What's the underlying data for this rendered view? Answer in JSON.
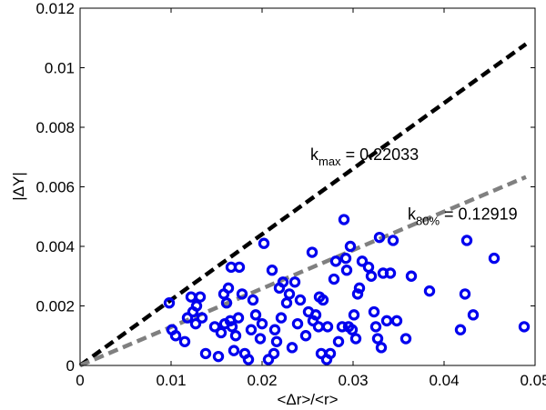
{
  "chart_data": {
    "type": "scatter",
    "title": "",
    "xlabel": "<Δr>/<r>",
    "ylabel": "|ΔY|",
    "xlim": [
      0,
      0.05
    ],
    "ylim": [
      0,
      0.012
    ],
    "xticks": [
      "0",
      "0.01",
      "0.02",
      "0.03",
      "0.04",
      "0.05"
    ],
    "xtick_values": [
      0,
      0.01,
      0.02,
      0.03,
      0.04,
      0.05
    ],
    "yticks": [
      "0",
      "0.002",
      "0.004",
      "0.006",
      "0.008",
      "0.01",
      "0.012"
    ],
    "ytick_values": [
      0,
      0.002,
      0.004,
      0.006,
      0.008,
      0.01,
      0.012
    ],
    "grid": false,
    "lines": [
      {
        "name": "k_max",
        "slope": 0.22033,
        "color": "#000000",
        "style": "dashed",
        "x_end": 0.049
      },
      {
        "name": "k_80%",
        "slope": 0.12919,
        "color": "#808080",
        "style": "dashed",
        "x_end": 0.049
      }
    ],
    "annotations": [
      {
        "main": "k",
        "sub": "max",
        "rest": " = 0.22033",
        "x": 0.0253,
        "y": 0.0069
      },
      {
        "main": "k",
        "sub": "80%",
        "rest": " = 0.12919",
        "x": 0.036,
        "y": 0.0049
      }
    ],
    "series": [
      {
        "name": "data",
        "color": "#0000ee",
        "marker": "circle-open",
        "points": [
          [
            0.0098,
            0.0021
          ],
          [
            0.0101,
            0.0012
          ],
          [
            0.0105,
            0.001
          ],
          [
            0.0115,
            0.0008
          ],
          [
            0.0118,
            0.0016
          ],
          [
            0.0122,
            0.0023
          ],
          [
            0.0124,
            0.0018
          ],
          [
            0.0127,
            0.0014
          ],
          [
            0.0128,
            0.002
          ],
          [
            0.0132,
            0.0023
          ],
          [
            0.0134,
            0.0016
          ],
          [
            0.0138,
            0.0004
          ],
          [
            0.0148,
            0.0013
          ],
          [
            0.0152,
            0.0003
          ],
          [
            0.0155,
            0.0011
          ],
          [
            0.0158,
            0.0024
          ],
          [
            0.0159,
            0.0014
          ],
          [
            0.0161,
            0.0021
          ],
          [
            0.0163,
            0.0026
          ],
          [
            0.0165,
            0.0015
          ],
          [
            0.0166,
            0.0033
          ],
          [
            0.0167,
            0.0013
          ],
          [
            0.0169,
            0.0005
          ],
          [
            0.0171,
            0.001
          ],
          [
            0.0174,
            0.0016
          ],
          [
            0.0175,
            0.0033
          ],
          [
            0.0178,
            0.0024
          ],
          [
            0.0181,
            0.0004
          ],
          [
            0.0185,
            0.0002
          ],
          [
            0.0188,
            0.0012
          ],
          [
            0.019,
            0.0022
          ],
          [
            0.0193,
            0.0017
          ],
          [
            0.0198,
            0.0009
          ],
          [
            0.02,
            0.0014
          ],
          [
            0.0202,
            0.0041
          ],
          [
            0.0207,
            0.0002
          ],
          [
            0.0211,
            0.0032
          ],
          [
            0.0213,
            0.0004
          ],
          [
            0.0214,
            0.0012
          ],
          [
            0.0216,
            0.0008
          ],
          [
            0.0219,
            0.0026
          ],
          [
            0.0221,
            0.0016
          ],
          [
            0.0223,
            0.0028
          ],
          [
            0.0227,
            0.0021
          ],
          [
            0.023,
            0.0024
          ],
          [
            0.0233,
            0.0006
          ],
          [
            0.0236,
            0.0028
          ],
          [
            0.0239,
            0.0014
          ],
          [
            0.0242,
            0.0022
          ],
          [
            0.0248,
            0.001
          ],
          [
            0.0251,
            0.0018
          ],
          [
            0.0255,
            0.0038
          ],
          [
            0.0256,
            0.0015
          ],
          [
            0.0259,
            0.0017
          ],
          [
            0.0262,
            0.0013
          ],
          [
            0.0263,
            0.0023
          ],
          [
            0.0265,
            0.0004
          ],
          [
            0.0267,
            0.0022
          ],
          [
            0.0271,
            0.0002
          ],
          [
            0.0272,
            0.0013
          ],
          [
            0.0275,
            0.0004
          ],
          [
            0.0279,
            0.0029
          ],
          [
            0.0281,
            0.0035
          ],
          [
            0.0284,
            0.0008
          ],
          [
            0.0288,
            0.0013
          ],
          [
            0.029,
            0.0049
          ],
          [
            0.0292,
            0.0036
          ],
          [
            0.0293,
            0.0032
          ],
          [
            0.0295,
            0.0013
          ],
          [
            0.0297,
            0.004
          ],
          [
            0.0299,
            0.0012
          ],
          [
            0.0301,
            0.0017
          ],
          [
            0.0303,
            0.0009
          ],
          [
            0.0305,
            0.0024
          ],
          [
            0.0307,
            0.0026
          ],
          [
            0.031,
            0.0035
          ],
          [
            0.0317,
            0.0033
          ],
          [
            0.032,
            0.003
          ],
          [
            0.0323,
            0.0018
          ],
          [
            0.0325,
            0.0013
          ],
          [
            0.0327,
            0.0009
          ],
          [
            0.0329,
            0.0043
          ],
          [
            0.0331,
            0.0006
          ],
          [
            0.0333,
            0.0031
          ],
          [
            0.0337,
            0.0015
          ],
          [
            0.0341,
            0.0031
          ],
          [
            0.0344,
            0.0042
          ],
          [
            0.0348,
            0.0015
          ],
          [
            0.0358,
            0.0009
          ],
          [
            0.0364,
            0.003
          ],
          [
            0.0384,
            0.0025
          ],
          [
            0.0418,
            0.0012
          ],
          [
            0.0423,
            0.0024
          ],
          [
            0.0425,
            0.0042
          ],
          [
            0.0432,
            0.0017
          ],
          [
            0.0455,
            0.0036
          ],
          [
            0.0488,
            0.0013
          ]
        ]
      }
    ]
  }
}
